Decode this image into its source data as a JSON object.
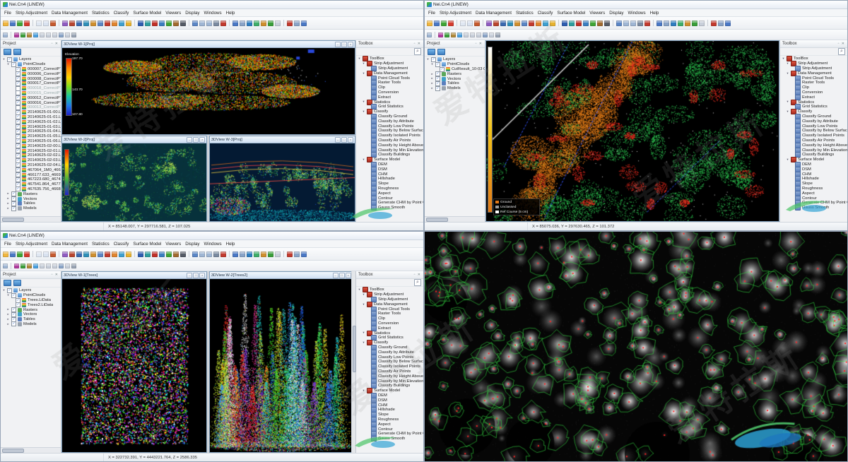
{
  "page": {
    "watermark_text": "爱特拉斯"
  },
  "app": {
    "window_title": "Nei.Cn4 (LiNEW)",
    "menus": [
      "File",
      "Strip Adjustment",
      "Data Management",
      "Statistics",
      "Classify",
      "Surface Model",
      "Viewers",
      "Display",
      "Windows",
      "Help"
    ],
    "toolbar_row1": [
      {
        "n": "open-project-icon",
        "c": "#f0b63f"
      },
      {
        "n": "save-project-icon",
        "c": "#4a78c5"
      },
      {
        "n": "add-data-icon",
        "c": "#3fa535"
      },
      {
        "n": "remove-data-icon",
        "c": "#d43c2f"
      },
      {
        "sep": true
      },
      {
        "n": "copy-icon",
        "c": "#dfe7f2"
      },
      {
        "n": "export-report-icon",
        "c": "#d9e2f0"
      },
      {
        "n": "notebook-icon",
        "c": "#c55a2f"
      },
      {
        "sep": true
      },
      {
        "n": "strip-alignment-icon",
        "c": "#8f5bc0"
      },
      {
        "n": "cut-strip-icon",
        "c": "#b8452f"
      },
      {
        "n": "profile-icon",
        "c": "#3b69b0"
      },
      {
        "n": "section-icon",
        "c": "#2f8fb8"
      },
      {
        "n": "measure-icon",
        "c": "#cf8f2f"
      },
      {
        "n": "monitor-icon",
        "c": "#5b86c5"
      },
      {
        "n": "sphere-red-icon",
        "c": "#c23a2e"
      },
      {
        "n": "sphere-orange-icon",
        "c": "#e0842f"
      },
      {
        "n": "globe-icon",
        "c": "#3fa0d0"
      },
      {
        "n": "sun-icon",
        "c": "#e8b32f"
      },
      {
        "sep": true
      },
      {
        "n": "flag-blue-icon",
        "c": "#2e5db0"
      },
      {
        "n": "flag-teal-icon",
        "c": "#2e9e9e"
      },
      {
        "n": "flag-red-icon",
        "c": "#c03028"
      },
      {
        "n": "flag-pair-icon",
        "c": "#3a7ec0"
      },
      {
        "n": "flag-green-icon",
        "c": "#3fa535"
      },
      {
        "n": "flag-brown-icon",
        "c": "#a06a2f"
      },
      {
        "n": "flag-dark-icon",
        "c": "#555b66"
      },
      {
        "sep": true
      },
      {
        "n": "full-extent-icon",
        "c": "#5b86c5"
      },
      {
        "n": "zoom-in-icon",
        "c": "#9fb6d4"
      },
      {
        "n": "zoom-out-icon",
        "c": "#9fb6d4"
      },
      {
        "n": "orbit-icon",
        "c": "#7a8aa0"
      },
      {
        "n": "walk-mode-icon",
        "c": "#c23a2e"
      },
      {
        "sep": true
      },
      {
        "n": "display-by-height-icon",
        "c": "#4a78c5"
      },
      {
        "n": "display-by-intensity-icon",
        "c": "#8aa4c8"
      },
      {
        "n": "display-by-class-icon",
        "c": "#2e7dc0"
      },
      {
        "n": "display-by-rgb-icon",
        "c": "#3fae6a"
      },
      {
        "n": "display-blend-icon",
        "c": "#cf8f2f"
      },
      {
        "n": "display-tree-icon",
        "c": "#3a9e3a"
      },
      {
        "n": "display-mix-icon",
        "c": "#c8cfda"
      },
      {
        "sep": true
      },
      {
        "n": "move-cross-icon",
        "c": "#c23a2e"
      },
      {
        "n": "layout-icon",
        "c": "#8aa4c8"
      },
      {
        "n": "link-view-icon",
        "c": "#4a78c5"
      }
    ],
    "toolbar_row2": [
      {
        "n": "profile-line-icon",
        "c": "#9fb6d4"
      },
      {
        "sep": true
      },
      {
        "n": "seed-point-icon",
        "c": "#b03a9e"
      },
      {
        "n": "grow-region-icon",
        "c": "#3a9e3a"
      },
      {
        "n": "image-icon",
        "c": "#b0893a"
      },
      {
        "n": "pan-blue-icon",
        "c": "#4aa0e0"
      },
      {
        "n": "arc-icon",
        "c": "#c8cfda"
      },
      {
        "n": "curve-icon",
        "c": "#c8cfda"
      },
      {
        "n": "grid-icon",
        "c": "#c8cfda"
      },
      {
        "n": "table-icon",
        "c": "#8aa4c8"
      },
      {
        "n": "snap-icon",
        "c": "#c8cfda"
      },
      {
        "n": "undo-icon",
        "c": "#9aa5b5"
      }
    ],
    "project_panel": {
      "title": "Project",
      "root_label": "Layers",
      "pointclouds_label": "PointClouds",
      "static_groups": [
        "Rasters",
        "Vectors",
        "Tables",
        "Models"
      ]
    },
    "toolbox_panel": {
      "title": "Toolbox",
      "root_label": "ToolBox",
      "sections": [
        {
          "label": "Strip Adjustment",
          "children": [
            "Strip Adjustment"
          ]
        },
        {
          "label": "Data Management",
          "children": [
            "Point Cloud Tools",
            "Raster Tools",
            "Clip",
            "Conversion",
            "Extract"
          ]
        },
        {
          "label": "Statistics",
          "children": [
            "Grid Statistics"
          ]
        },
        {
          "label": "Classify",
          "children": [
            "Classify Ground",
            "Classify by Attribute",
            "Classify Low Points",
            "Classify by Below Surface",
            "Classify Isolated Points",
            "Classify Air Points",
            "Classify by Height Above Ground",
            "Classify by Min Elevation",
            "Classify Buildings"
          ]
        },
        {
          "label": "Surface Model",
          "children": [
            "DEM",
            "DSM",
            "CHM",
            "Hillshade",
            "Slope",
            "Roughness",
            "Aspect",
            "Contour",
            "Generate CHM by Point Cloud",
            "Gauss Smooth"
          ]
        }
      ]
    }
  },
  "q1": {
    "layers": [
      "000007_CorrectPTxLas.LiData",
      "000006_CorrectPTxLas.LiData",
      "000008_CorrectPTxLas.LiData",
      "000017_CorrectPTxLas.LiData",
      "000018_CorrectPTxLas.LiData",
      "000015_CorrectPTxLas.LiData",
      "000012_CorrectPTxLas.LiData",
      "000016_CorrectPTxLas.LiData",
      "000013_CorrectPTxLas.LiData",
      "20140625-01-00.LiData",
      "20140625-01-01.LiData",
      "20140625-01-02.LiData",
      "20140625-01-03.LiData",
      "20140625-01-04.LiData",
      "20140625-01-05.LiData",
      "20140625-01-06.LiData",
      "20140625-02-00.LiData",
      "20140625-02-01.LiData",
      "20140625-02-02.LiData",
      "20140625-02-03.LiData",
      "20140625-02-04.LiData",
      "467064_1M0_466030.499.LiData",
      "466177.633_466939.578.LiData",
      "467223.680_467431.272.LiData",
      "467541.864_467753.984.LiData",
      "467635.756_466844.5.LiData"
    ],
    "dimmed": [
      4,
      5,
      8
    ],
    "viewports": {
      "main": "3DView W-1[Proj]",
      "bl": "3DView W-2[Proj]",
      "br": "3DView W-3[Proj]"
    },
    "colorbar": {
      "title": "Elevation",
      "tick_top": "197.70",
      "tick_mid": "143.70",
      "tick_bottom": "107.80"
    },
    "status": "X = 85148.007, Y = 297716.581, Z = 107.025"
  },
  "q2": {
    "layers": [
      "CutResult_10-03 05.LiData"
    ],
    "dimmed": [],
    "legend": [
      {
        "label": "Ground",
        "color": "#e07818"
      },
      {
        "label": "Unclassed",
        "color": "#9e9e9e"
      },
      {
        "label": "Ref Course (5 cm)",
        "color": "#ffffff"
      }
    ],
    "status": "X = 85075.036, Y = 297630.465, Z = 101.372"
  },
  "q3": {
    "layers": [
      "Trees.LiData",
      "Trees2.LiData"
    ],
    "dimmed": [],
    "viewports": {
      "left": "3DView W-1[Trees]",
      "right": "3DView W-2[Trees2]"
    },
    "status": "X = 322732.391, Y = 4443221.764, Z = 2586.335"
  },
  "scenes": {
    "q1_main": {
      "bg": "#000000",
      "palette": [
        "#e81500",
        "#ff6a00",
        "#ffd400",
        "#56c918",
        "#2e9e0e",
        "#e81500",
        "#ff6a00",
        "#ffd400",
        "#24b34a",
        "#3566ff"
      ]
    },
    "q1_bl": {
      "bg": "#07313b",
      "palette": [
        "#1f7a2d",
        "#2fa43b",
        "#5fc945",
        "#8fdc4a",
        "#c9e84f",
        "#0f5c2a",
        "#17a0a8"
      ]
    },
    "q1_br": {
      "bg": "#041a33",
      "palette": [
        "#1f7a2d",
        "#2fa43b",
        "#5fc945",
        "#b7e04a",
        "#e8e84f",
        "#18b0b8",
        "#2255cc"
      ],
      "lines": [
        "#d2691e",
        "#ff4444",
        "#e8c83f"
      ]
    },
    "q2": {
      "bg": "#000000",
      "green": [
        "#2ecc52",
        "#28b84a",
        "#3bdb60",
        "#1fa83f"
      ],
      "orange": [
        "#e07818",
        "#f08a1f",
        "#c96a12"
      ],
      "red": [
        "#e8281e",
        "#ff3526",
        "#c81e14"
      ],
      "blue": "#3355ff",
      "white": "#dddddd"
    },
    "q3_left": {
      "bg": "#000000",
      "palette": [
        "#ff2020",
        "#20ff20",
        "#2040ff",
        "#ffff20",
        "#20ffff",
        "#ff20ff",
        "#ffffff",
        "#ff8020",
        "#80ff20",
        "#2080ff",
        "#ff2080",
        "#a020ff"
      ]
    },
    "q3_right": {
      "bg": "#000000",
      "palette": [
        "#e82020",
        "#f08020",
        "#f0e020",
        "#40d020",
        "#20c8c8",
        "#2060e8",
        "#8030e0",
        "#e030a0",
        "#20e070",
        "#c0e030",
        "#3090f0",
        "#f0f0f0"
      ]
    },
    "q4": {
      "bg": "#060606",
      "outline": "#35d842",
      "marker": "#ff2222",
      "logo_blue": "#2da0d2",
      "logo_green": "#4fc46a"
    }
  }
}
